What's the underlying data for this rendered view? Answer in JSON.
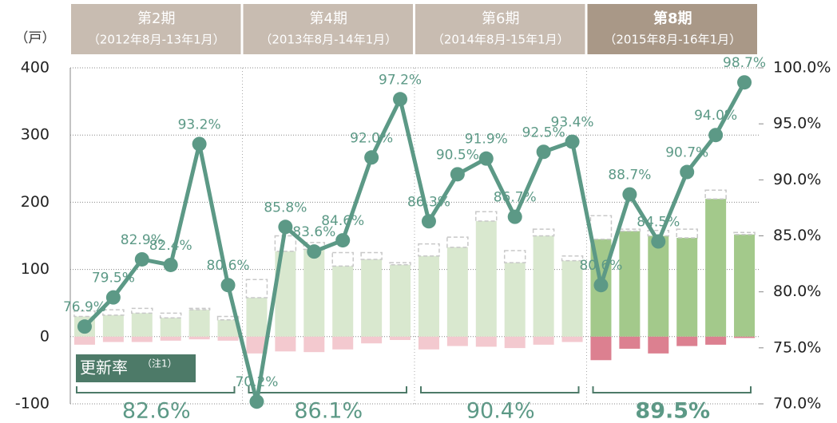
{
  "chart_data": {
    "type": "bar-line",
    "y_unit": "（戸）",
    "ylim": [
      -100,
      400
    ],
    "yticks": [
      -100,
      0,
      100,
      200,
      300,
      400
    ],
    "y2lim": [
      70,
      100
    ],
    "y2ticks": [
      {
        "value": 70,
        "label": "70.0%"
      },
      {
        "value": 75,
        "label": "75.0%"
      },
      {
        "value": 80,
        "label": "80.0%"
      },
      {
        "value": 85,
        "label": "85.0%"
      },
      {
        "value": 90,
        "label": "90.0%"
      },
      {
        "value": 95,
        "label": "95.0%"
      },
      {
        "value": 100,
        "label": "100.0%"
      }
    ],
    "grid": true,
    "categories": [
      null,
      null,
      null,
      null,
      null,
      null,
      null,
      null,
      null,
      null,
      null,
      null,
      null,
      null,
      null,
      null,
      null,
      null,
      null,
      null,
      null,
      null,
      null,
      null
    ],
    "groups": [
      {
        "title": "第2期",
        "range": "（2012年8月-13年1月）",
        "average": "82.6%",
        "header_color": "#c8bcb1",
        "bar_color": "#d9e8cf",
        "neg_color": "#f3c9cf"
      },
      {
        "title": "第4期",
        "range": "（2013年8月-14年1月）",
        "average": "86.1%",
        "header_color": "#c8bcb1",
        "bar_color": "#d9e8cf",
        "neg_color": "#f3c9cf"
      },
      {
        "title": "第6期",
        "range": "（2014年8月-15年1月）",
        "average": "90.4%",
        "header_color": "#c8bcb1",
        "bar_color": "#d9e8cf",
        "neg_color": "#f3c9cf"
      },
      {
        "title": "第8期",
        "range": "（2015年8月-16年1月）",
        "average": "89.5%",
        "header_color": "#a99887",
        "bar_color": "#a3c98b",
        "neg_color": "#dc8090",
        "bold": true
      }
    ],
    "series": [
      {
        "kind": "bar",
        "values": [
          30,
          32,
          35,
          28,
          40,
          25,
          58,
          127,
          130,
          105,
          115,
          107,
          120,
          133,
          172,
          110,
          150,
          113,
          145,
          157,
          150,
          147,
          205,
          152
        ]
      },
      {
        "kind": "outline",
        "color": "#c8c8c8",
        "values": [
          8,
          8,
          7,
          7,
          2,
          5,
          27,
          23,
          10,
          20,
          10,
          3,
          18,
          15,
          14,
          18,
          10,
          7,
          35,
          3,
          8,
          13,
          13,
          3
        ]
      },
      {
        "kind": "negative",
        "values": [
          -12,
          -8,
          -8,
          -6,
          -4,
          -6,
          -25,
          -22,
          -23,
          -19,
          -10,
          -5,
          -19,
          -14,
          -15,
          -17,
          -12,
          -8,
          -35,
          -18,
          -25,
          -14,
          -12,
          -2
        ]
      },
      {
        "kind": "line",
        "axis": "y2",
        "color": "#5c9986",
        "values": [
          76.9,
          79.5,
          82.9,
          82.4,
          93.2,
          80.6,
          70.2,
          85.8,
          83.6,
          84.6,
          92.0,
          97.2,
          86.3,
          90.5,
          91.9,
          86.7,
          92.5,
          93.4,
          80.6,
          88.7,
          84.5,
          90.7,
          94.0,
          98.7
        ],
        "value_labels": [
          "76.9%",
          "79.5%",
          "82.9%",
          "82.4%",
          "93.2%",
          "80.6%",
          "70.2%",
          "85.8%",
          "83.6%",
          "84.6%",
          "92.0%",
          "97.2%",
          "86.3%",
          "90.5%",
          "91.9%",
          "86.7%",
          "92.5%",
          "93.4%",
          "80.6%",
          "88.7%",
          "84.5%",
          "90.7%",
          "94.0%",
          "98.7%"
        ]
      }
    ],
    "legend_label": "更新率",
    "legend_note": "（注1）"
  }
}
